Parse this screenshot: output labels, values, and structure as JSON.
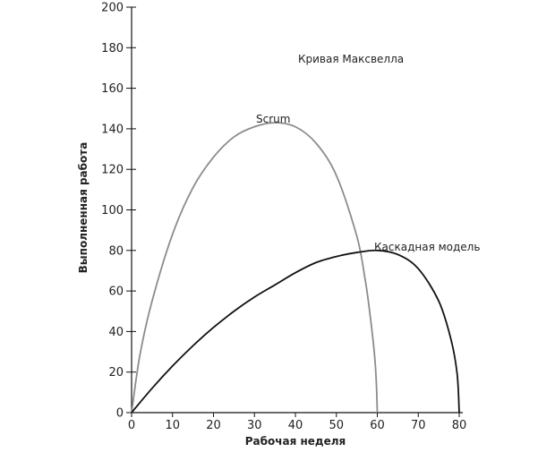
{
  "chart_data": {
    "type": "line",
    "title": "Кривая Максвелла",
    "xlabel": "Рабочая неделя",
    "ylabel": "Выполненная работа",
    "xlim": [
      0,
      80
    ],
    "ylim": [
      0,
      200
    ],
    "x_ticks": [
      "0",
      "10",
      "20",
      "30",
      "40",
      "50",
      "60",
      "70",
      "80"
    ],
    "y_ticks": [
      "0",
      "20",
      "40",
      "60",
      "80",
      "100",
      "120",
      "140",
      "160",
      "180",
      "200"
    ],
    "grid": false,
    "legend": "none",
    "series": [
      {
        "name": "Scrum",
        "color": "#8c8c8c",
        "x": [
          0,
          2,
          5,
          10,
          15,
          20,
          25,
          30,
          35,
          40,
          45,
          50,
          55,
          57,
          58,
          59,
          59.5,
          59.8,
          60
        ],
        "y": [
          0,
          28,
          55,
          88,
          111,
          126,
          136,
          141,
          143,
          141,
          133,
          117,
          87,
          66,
          52,
          35,
          24,
          13,
          0
        ]
      },
      {
        "name": "Каскадная модель",
        "color": "#111111",
        "x": [
          0,
          5,
          10,
          15,
          20,
          25,
          30,
          35,
          40,
          45,
          50,
          55,
          60,
          65,
          70,
          75,
          78,
          79.5,
          80
        ],
        "y": [
          0,
          12,
          23,
          33,
          42,
          50,
          57,
          63,
          69,
          74,
          77,
          79,
          80,
          78,
          71,
          55,
          36,
          19,
          0
        ]
      }
    ]
  }
}
